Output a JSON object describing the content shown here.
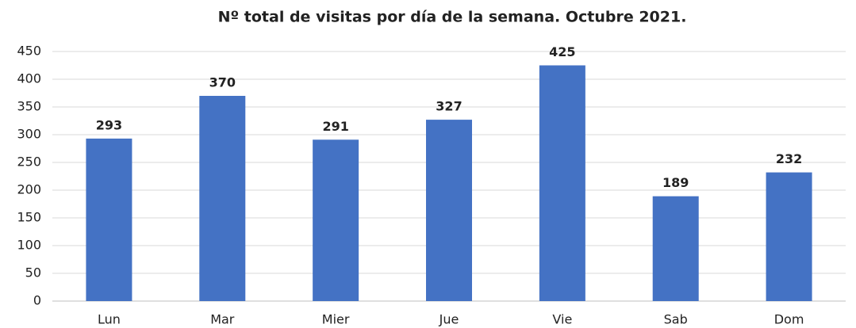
{
  "chart_data": {
    "type": "bar",
    "title": "Nº total de visitas por día de la semana. Octubre 2021.",
    "categories": [
      "Lun",
      "Mar",
      "Mier",
      "Jue",
      "Vie",
      "Sab",
      "Dom"
    ],
    "values": [
      293,
      370,
      291,
      327,
      425,
      189,
      232
    ],
    "color": "#4472c4",
    "ylim": [
      0,
      450
    ],
    "yticks": [
      0,
      50,
      100,
      150,
      200,
      250,
      300,
      350,
      400,
      450
    ],
    "grid": true
  }
}
